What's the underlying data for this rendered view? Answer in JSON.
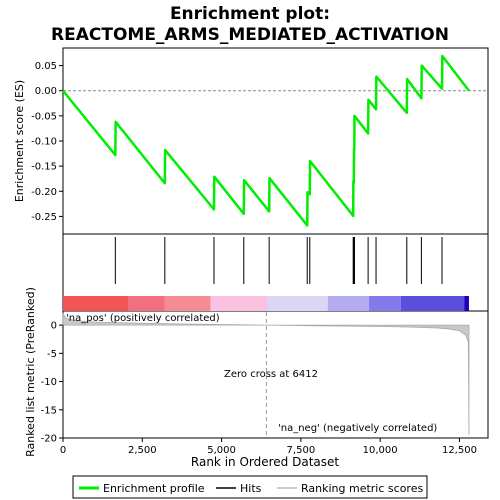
{
  "chart_data": {
    "type": "line",
    "title_line1": "Enrichment plot:",
    "title_line2": "REACTOME_ARMS_MEDIATED_ACTIVATION",
    "top_panel": {
      "ylabel": "Enrichment score (ES)",
      "ylim": [
        -0.285,
        0.085
      ],
      "yticks": [
        0.05,
        0.0,
        -0.05,
        -0.1,
        -0.15,
        -0.2,
        -0.25
      ],
      "ytick_labels": [
        "0.05",
        "0.00",
        "-0.05",
        "-0.10",
        "-0.15",
        "-0.20",
        "-0.25"
      ],
      "line_color": "#00ee00",
      "es_curve": [
        [
          0,
          0.0
        ],
        [
          1650,
          -0.128
        ],
        [
          1660,
          -0.062
        ],
        [
          3210,
          -0.184
        ],
        [
          3220,
          -0.118
        ],
        [
          4760,
          -0.236
        ],
        [
          4770,
          -0.171
        ],
        [
          5700,
          -0.245
        ],
        [
          5710,
          -0.178
        ],
        [
          6500,
          -0.24
        ],
        [
          6510,
          -0.174
        ],
        [
          7700,
          -0.268
        ],
        [
          7710,
          -0.202
        ],
        [
          7780,
          -0.206
        ],
        [
          7790,
          -0.14
        ],
        [
          9150,
          -0.249
        ],
        [
          9155,
          -0.18
        ],
        [
          9170,
          -0.183
        ],
        [
          9175,
          -0.116
        ],
        [
          9185,
          -0.117
        ],
        [
          9190,
          -0.05
        ],
        [
          9620,
          -0.085
        ],
        [
          9630,
          -0.018
        ],
        [
          9870,
          -0.037
        ],
        [
          9880,
          0.028
        ],
        [
          10840,
          -0.044
        ],
        [
          10850,
          0.023
        ],
        [
          11300,
          -0.015
        ],
        [
          11310,
          0.05
        ],
        [
          11950,
          0.004
        ],
        [
          11960,
          0.069
        ],
        [
          12800,
          0.0
        ]
      ]
    },
    "hits_panel": {
      "hit_positions": [
        1650,
        3210,
        4760,
        5700,
        6500,
        7700,
        7780,
        9150,
        9175,
        9190,
        9620,
        9870,
        10840,
        11300,
        11950
      ]
    },
    "bottom_panel": {
      "ylabel": "Ranked list metric (PreRanked)",
      "ylim": [
        -20,
        2.5
      ],
      "yticks": [
        0,
        -5,
        -10,
        -15,
        -20
      ],
      "ytick_labels": [
        "0",
        "-5",
        "-10",
        "-15",
        "-20"
      ],
      "metric_curve": [
        [
          0,
          2.0
        ],
        [
          100,
          1.2
        ],
        [
          400,
          0.8
        ],
        [
          1000,
          0.55
        ],
        [
          2000,
          0.4
        ],
        [
          3000,
          0.28
        ],
        [
          4000,
          0.18
        ],
        [
          5000,
          0.1
        ],
        [
          6000,
          0.04
        ],
        [
          6412,
          0.0
        ],
        [
          7000,
          -0.05
        ],
        [
          8000,
          -0.12
        ],
        [
          9000,
          -0.18
        ],
        [
          10000,
          -0.25
        ],
        [
          11000,
          -0.35
        ],
        [
          11800,
          -0.5
        ],
        [
          12200,
          -0.7
        ],
        [
          12500,
          -1.0
        ],
        [
          12700,
          -1.8
        ],
        [
          12780,
          -3.0
        ],
        [
          12800,
          -19.5
        ]
      ],
      "zero_cross_label": "Zero cross at 6412",
      "zero_cross_x": 6412,
      "pos_label": "'na_pos' (positively correlated)",
      "neg_label": "'na_neg' (negatively correlated)",
      "pos_color": "#cc0000",
      "neg_color": "#0000cc"
    },
    "xlabel": "Rank in Ordered Dataset",
    "xlim": [
      0,
      13400
    ],
    "xticks": [
      0,
      2500,
      5000,
      7500,
      10000,
      12500
    ],
    "xtick_labels": [
      "0",
      "2,500",
      "5,000",
      "7,500",
      "10,000",
      "12,500"
    ],
    "colorbar_segments": [
      {
        "start": 0,
        "end": 2050,
        "color": "#f25555"
      },
      {
        "start": 2050,
        "end": 3200,
        "color": "#f26f7f"
      },
      {
        "start": 3200,
        "end": 4650,
        "color": "#f48c94"
      },
      {
        "start": 4650,
        "end": 6450,
        "color": "#f8c2e0"
      },
      {
        "start": 6450,
        "end": 8350,
        "color": "#dcd6f6"
      },
      {
        "start": 8350,
        "end": 9650,
        "color": "#b3acf0"
      },
      {
        "start": 9650,
        "end": 10650,
        "color": "#8279ea"
      },
      {
        "start": 10650,
        "end": 12650,
        "color": "#5a4edc"
      },
      {
        "start": 12650,
        "end": 12800,
        "color": "#2200bb"
      }
    ],
    "legend": {
      "items": [
        {
          "label": "Enrichment profile",
          "color": "#00ee00"
        },
        {
          "label": "Hits",
          "color": "#000000"
        },
        {
          "label": "Ranking metric scores",
          "color": "#bbbbbb"
        }
      ]
    }
  }
}
